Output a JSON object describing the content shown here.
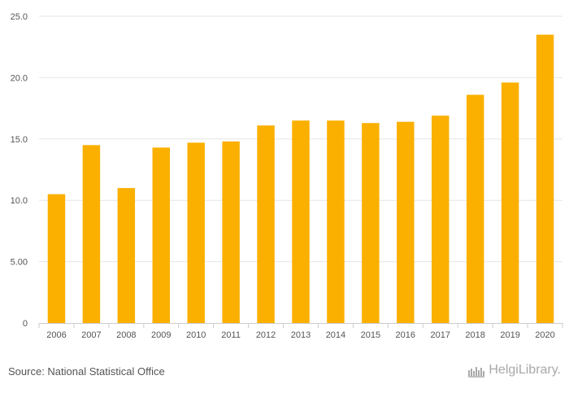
{
  "chart_data": {
    "type": "bar",
    "categories": [
      "2006",
      "2007",
      "2008",
      "2009",
      "2010",
      "2011",
      "2012",
      "2013",
      "2014",
      "2015",
      "2016",
      "2017",
      "2018",
      "2019",
      "2020"
    ],
    "values": [
      10.5,
      14.5,
      11.0,
      14.3,
      14.7,
      14.8,
      16.1,
      16.5,
      16.5,
      16.3,
      16.4,
      16.9,
      18.6,
      19.6,
      23.5
    ],
    "ylim": [
      0,
      25
    ],
    "yticks": [
      "0",
      "5.00",
      "10.0",
      "15.0",
      "20.0",
      "25.0"
    ],
    "grid": true,
    "bar_color": "#fbb000"
  },
  "footer": {
    "source": "Source: National Statistical Office",
    "logo_text": "HelgiLibrary."
  }
}
